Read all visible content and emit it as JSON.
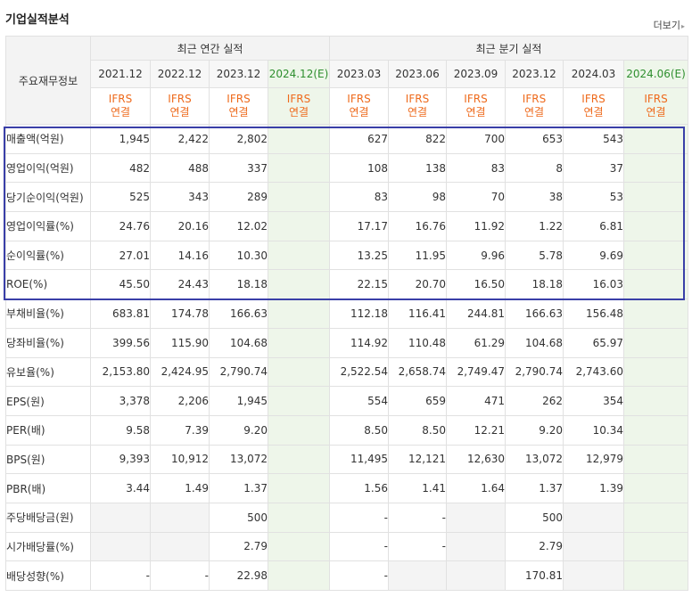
{
  "title": "기업실적분석",
  "more_label": "더보기",
  "more_arrow": "▸",
  "header": {
    "row_label": "주요재무정보",
    "annual_group": "최근 연간 실적",
    "quarter_group": "최근 분기 실적",
    "periods": [
      "2021.12",
      "2022.12",
      "2023.12",
      "2024.12(E)",
      "2023.03",
      "2023.06",
      "2023.09",
      "2023.12",
      "2024.03",
      "2024.06(E)"
    ],
    "basis_line1": "IFRS",
    "basis_line2": "연결"
  },
  "rows": [
    {
      "label": "매출액(억원)",
      "values": [
        "1,945",
        "2,422",
        "2,802",
        "",
        "627",
        "822",
        "700",
        "653",
        "543",
        ""
      ]
    },
    {
      "label": "영업이익(억원)",
      "values": [
        "482",
        "488",
        "337",
        "",
        "108",
        "138",
        "83",
        "8",
        "37",
        ""
      ]
    },
    {
      "label": "당기순이익(억원)",
      "values": [
        "525",
        "343",
        "289",
        "",
        "83",
        "98",
        "70",
        "38",
        "53",
        ""
      ]
    },
    {
      "label": "영업이익률(%)",
      "values": [
        "24.76",
        "20.16",
        "12.02",
        "",
        "17.17",
        "16.76",
        "11.92",
        "1.22",
        "6.81",
        ""
      ]
    },
    {
      "label": "순이익률(%)",
      "values": [
        "27.01",
        "14.16",
        "10.30",
        "",
        "13.25",
        "11.95",
        "9.96",
        "5.78",
        "9.69",
        ""
      ]
    },
    {
      "label": "ROE(%)",
      "values": [
        "45.50",
        "24.43",
        "18.18",
        "",
        "22.15",
        "20.70",
        "16.50",
        "18.18",
        "16.03",
        ""
      ]
    },
    {
      "label": "부채비율(%)",
      "values": [
        "683.81",
        "174.78",
        "166.63",
        "",
        "112.18",
        "116.41",
        "244.81",
        "166.63",
        "156.48",
        ""
      ]
    },
    {
      "label": "당좌비율(%)",
      "values": [
        "399.56",
        "115.90",
        "104.68",
        "",
        "114.92",
        "110.48",
        "61.29",
        "104.68",
        "65.97",
        ""
      ]
    },
    {
      "label": "유보율(%)",
      "values": [
        "2,153.80",
        "2,424.95",
        "2,790.74",
        "",
        "2,522.54",
        "2,658.74",
        "2,749.47",
        "2,790.74",
        "2,743.60",
        ""
      ]
    },
    {
      "label": "EPS(원)",
      "values": [
        "3,378",
        "2,206",
        "1,945",
        "",
        "554",
        "659",
        "471",
        "262",
        "354",
        ""
      ]
    },
    {
      "label": "PER(배)",
      "values": [
        "9.58",
        "7.39",
        "9.20",
        "",
        "8.50",
        "8.50",
        "12.21",
        "9.20",
        "10.34",
        ""
      ]
    },
    {
      "label": "BPS(원)",
      "values": [
        "9,393",
        "10,912",
        "13,072",
        "",
        "11,495",
        "12,121",
        "12,630",
        "13,072",
        "12,979",
        ""
      ]
    },
    {
      "label": "PBR(배)",
      "values": [
        "3.44",
        "1.49",
        "1.37",
        "",
        "1.56",
        "1.41",
        "1.64",
        "1.37",
        "1.39",
        ""
      ]
    },
    {
      "label": "주당배당금(원)",
      "values": [
        "",
        "",
        "500",
        "",
        "-",
        "-",
        "",
        "500",
        "",
        ""
      ]
    },
    {
      "label": "시가배당률(%)",
      "values": [
        "",
        "",
        "2.79",
        "",
        "-",
        "-",
        "",
        "2.79",
        "",
        ""
      ]
    },
    {
      "label": "배당성향(%)",
      "values": [
        "-",
        "-",
        "22.98",
        "",
        "-",
        "",
        "",
        "170.81",
        "",
        ""
      ]
    }
  ],
  "gray_cells": [
    [
      13,
      0
    ],
    [
      13,
      1
    ],
    [
      13,
      6
    ],
    [
      13,
      8
    ],
    [
      14,
      0
    ],
    [
      14,
      1
    ],
    [
      14,
      6
    ],
    [
      14,
      8
    ],
    [
      15,
      5
    ],
    [
      15,
      6
    ],
    [
      15,
      8
    ]
  ],
  "highlight_color": "#3a3fa8",
  "accent_color": "#ee6a1c"
}
